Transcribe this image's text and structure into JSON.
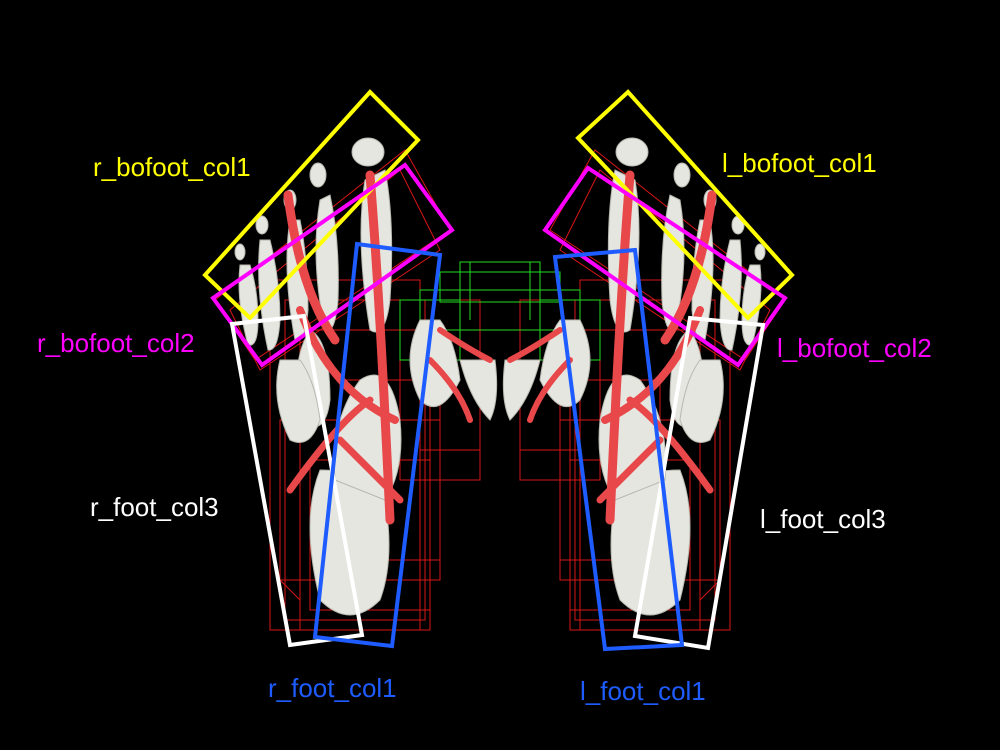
{
  "colors": {
    "background": "#000000",
    "col1_yellow": "#ffff00",
    "col2_magenta": "#ff00ff",
    "col3_white": "#ffffff",
    "foot_col1_blue": "#1e5cff",
    "muscle_red": "#e8484a",
    "wireframe_red": "#ff1a1a",
    "wireframe_green": "#22dd22",
    "bone": "#e6e6e0"
  },
  "labels": {
    "r_bofoot_col1": "r_bofoot_col1",
    "l_bofoot_col1": "l_bofoot_col1",
    "r_bofoot_col2": "r_bofoot_col2",
    "l_bofoot_col2": "l_bofoot_col2",
    "r_foot_col3": "r_foot_col3",
    "l_foot_col3": "l_foot_col3",
    "r_foot_col1": "r_foot_col1",
    "l_foot_col1": "l_foot_col1"
  }
}
